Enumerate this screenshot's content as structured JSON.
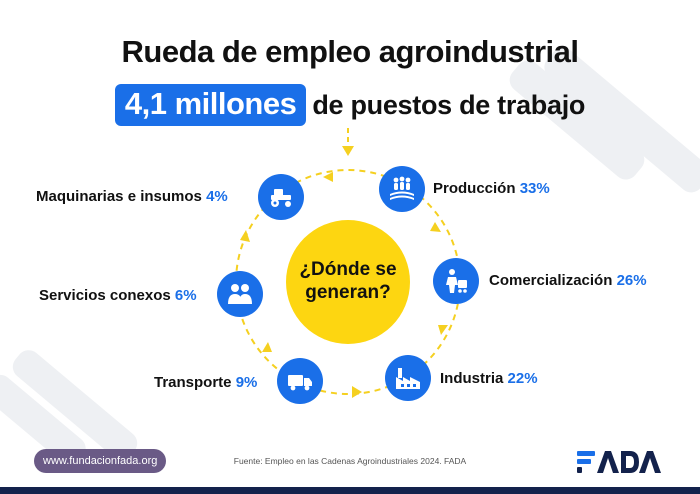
{
  "title": "Rueda de empleo agroindustrial",
  "subtitle": {
    "highlight": "4,1 millones",
    "rest": "de puestos de trabajo"
  },
  "center": {
    "line1": "¿Dónde se",
    "line2": "generan?"
  },
  "sectors": [
    {
      "name": "Producción",
      "percent": "33%",
      "icon": "farmers-field-icon",
      "value": 33
    },
    {
      "name": "Comercialización",
      "percent": "26%",
      "icon": "worker-cart-icon",
      "value": 26
    },
    {
      "name": "Industria",
      "percent": "22%",
      "icon": "factory-icon",
      "value": 22
    },
    {
      "name": "Transporte",
      "percent": "9%",
      "icon": "truck-icon",
      "value": 9
    },
    {
      "name": "Servicios conexos",
      "percent": "6%",
      "icon": "people-icon",
      "value": 6
    },
    {
      "name": "Maquinarias e insumos",
      "percent": "4%",
      "icon": "tractor-icon",
      "value": 4
    }
  ],
  "footer": {
    "website": "www.fundacionfada.org",
    "source": "Fuente: Empleo en las Cadenas Agroindustriales 2024. FADA",
    "logo": "FADA"
  },
  "colors": {
    "accent": "#1a6fe8",
    "center": "#fdd611",
    "ring": "#f5d020",
    "footer_pill": "#6a5a86",
    "bottom_bar": "#13224c"
  }
}
